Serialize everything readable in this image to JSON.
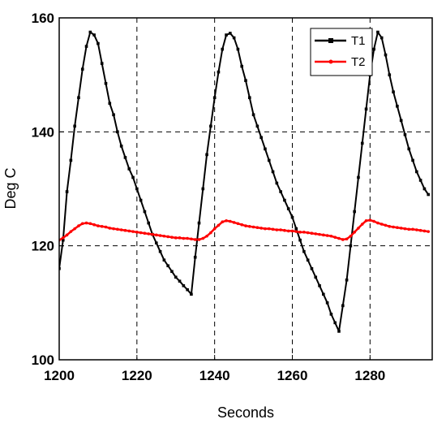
{
  "chart_data": {
    "type": "line",
    "xlabel": "Seconds",
    "ylabel": "Deg C",
    "xlim": [
      1200,
      1296
    ],
    "ylim": [
      100,
      160
    ],
    "xticks": [
      1200,
      1220,
      1240,
      1260,
      1280
    ],
    "yticks": [
      100,
      120,
      140,
      160
    ],
    "grid": true,
    "grid_style": "dashed",
    "legend_position": "top-right",
    "series": [
      {
        "name": "T1",
        "color": "#000000",
        "marker": "square",
        "points": [
          [
            1200,
            116
          ],
          [
            1201,
            121
          ],
          [
            1202,
            129.5
          ],
          [
            1203,
            135
          ],
          [
            1204,
            141
          ],
          [
            1205,
            146
          ],
          [
            1206,
            151
          ],
          [
            1207,
            155
          ],
          [
            1208,
            157.5
          ],
          [
            1209,
            157
          ],
          [
            1210,
            155.5
          ],
          [
            1211,
            152
          ],
          [
            1212,
            148.5
          ],
          [
            1213,
            145
          ],
          [
            1214,
            143
          ],
          [
            1215,
            140
          ],
          [
            1216,
            137.5
          ],
          [
            1217,
            135.5
          ],
          [
            1218,
            133.5
          ],
          [
            1219,
            132
          ],
          [
            1220,
            130
          ],
          [
            1221,
            128
          ],
          [
            1222,
            126
          ],
          [
            1223,
            124
          ],
          [
            1224,
            122
          ],
          [
            1225,
            120.5
          ],
          [
            1226,
            119
          ],
          [
            1227,
            117.5
          ],
          [
            1228,
            116.5
          ],
          [
            1229,
            115.5
          ],
          [
            1230,
            114.5
          ],
          [
            1231,
            113.8
          ],
          [
            1232,
            113
          ],
          [
            1233,
            112.3
          ],
          [
            1234,
            111.5
          ],
          [
            1235,
            118
          ],
          [
            1236,
            124
          ],
          [
            1237,
            130
          ],
          [
            1238,
            136
          ],
          [
            1239,
            141
          ],
          [
            1240,
            146
          ],
          [
            1241,
            150.5
          ],
          [
            1242,
            154.5
          ],
          [
            1243,
            157
          ],
          [
            1244,
            157.3
          ],
          [
            1245,
            156.5
          ],
          [
            1246,
            154.5
          ],
          [
            1247,
            151.5
          ],
          [
            1248,
            149
          ],
          [
            1249,
            146
          ],
          [
            1250,
            143
          ],
          [
            1251,
            141
          ],
          [
            1252,
            139
          ],
          [
            1253,
            137
          ],
          [
            1254,
            135
          ],
          [
            1255,
            133
          ],
          [
            1256,
            131
          ],
          [
            1257,
            129.5
          ],
          [
            1258,
            128
          ],
          [
            1259,
            126.5
          ],
          [
            1260,
            125
          ],
          [
            1261,
            123
          ],
          [
            1262,
            121
          ],
          [
            1263,
            119
          ],
          [
            1264,
            117.5
          ],
          [
            1265,
            116
          ],
          [
            1266,
            114.5
          ],
          [
            1267,
            113
          ],
          [
            1268,
            111.5
          ],
          [
            1269,
            110
          ],
          [
            1270,
            108
          ],
          [
            1271,
            106.5
          ],
          [
            1272,
            105
          ],
          [
            1273,
            109.5
          ],
          [
            1274,
            114
          ],
          [
            1275,
            120
          ],
          [
            1276,
            126
          ],
          [
            1277,
            132
          ],
          [
            1278,
            138
          ],
          [
            1279,
            144
          ],
          [
            1280,
            150
          ],
          [
            1281,
            154.5
          ],
          [
            1282,
            157.5
          ],
          [
            1283,
            156.5
          ],
          [
            1284,
            153.5
          ],
          [
            1285,
            150
          ],
          [
            1286,
            147
          ],
          [
            1287,
            144.5
          ],
          [
            1288,
            142
          ],
          [
            1289,
            139.5
          ],
          [
            1290,
            137
          ],
          [
            1291,
            135
          ],
          [
            1292,
            133
          ],
          [
            1293,
            131.5
          ],
          [
            1294,
            130
          ],
          [
            1295,
            129
          ]
        ]
      },
      {
        "name": "T2",
        "color": "#ff0000",
        "marker": "dot",
        "points": [
          [
            1200,
            121
          ],
          [
            1201,
            121.4
          ],
          [
            1202,
            121.9
          ],
          [
            1203,
            122.5
          ],
          [
            1204,
            123
          ],
          [
            1205,
            123.5
          ],
          [
            1206,
            123.9
          ],
          [
            1207,
            124
          ],
          [
            1208,
            123.9
          ],
          [
            1209,
            123.7
          ],
          [
            1210,
            123.5
          ],
          [
            1211,
            123.4
          ],
          [
            1212,
            123.3
          ],
          [
            1213,
            123.1
          ],
          [
            1214,
            123
          ],
          [
            1215,
            122.9
          ],
          [
            1216,
            122.8
          ],
          [
            1217,
            122.7
          ],
          [
            1218,
            122.6
          ],
          [
            1219,
            122.5
          ],
          [
            1220,
            122.4
          ],
          [
            1221,
            122.3
          ],
          [
            1222,
            122.2
          ],
          [
            1223,
            122.1
          ],
          [
            1224,
            122
          ],
          [
            1225,
            121.9
          ],
          [
            1226,
            121.8
          ],
          [
            1227,
            121.7
          ],
          [
            1228,
            121.6
          ],
          [
            1229,
            121.5
          ],
          [
            1230,
            121.4
          ],
          [
            1231,
            121.4
          ],
          [
            1232,
            121.3
          ],
          [
            1233,
            121.3
          ],
          [
            1234,
            121.2
          ],
          [
            1235,
            121.1
          ],
          [
            1236,
            121.1
          ],
          [
            1237,
            121.3
          ],
          [
            1238,
            121.7
          ],
          [
            1239,
            122.3
          ],
          [
            1240,
            123
          ],
          [
            1241,
            123.6
          ],
          [
            1242,
            124.2
          ],
          [
            1243,
            124.4
          ],
          [
            1244,
            124.3
          ],
          [
            1245,
            124.1
          ],
          [
            1246,
            123.9
          ],
          [
            1247,
            123.7
          ],
          [
            1248,
            123.5
          ],
          [
            1249,
            123.4
          ],
          [
            1250,
            123.3
          ],
          [
            1251,
            123.2
          ],
          [
            1252,
            123.1
          ],
          [
            1253,
            123
          ],
          [
            1254,
            123
          ],
          [
            1255,
            122.9
          ],
          [
            1256,
            122.8
          ],
          [
            1257,
            122.8
          ],
          [
            1258,
            122.7
          ],
          [
            1259,
            122.6
          ],
          [
            1260,
            122.6
          ],
          [
            1261,
            122.5
          ],
          [
            1262,
            122.4
          ],
          [
            1263,
            122.4
          ],
          [
            1264,
            122.3
          ],
          [
            1265,
            122.2
          ],
          [
            1266,
            122.1
          ],
          [
            1267,
            122
          ],
          [
            1268,
            121.9
          ],
          [
            1269,
            121.8
          ],
          [
            1270,
            121.7
          ],
          [
            1271,
            121.5
          ],
          [
            1272,
            121.3
          ],
          [
            1273,
            121.1
          ],
          [
            1274,
            121.2
          ],
          [
            1275,
            121.7
          ],
          [
            1276,
            122.4
          ],
          [
            1277,
            123.1
          ],
          [
            1278,
            123.8
          ],
          [
            1279,
            124.4
          ],
          [
            1280,
            124.5
          ],
          [
            1281,
            124.3
          ],
          [
            1282,
            124
          ],
          [
            1283,
            123.8
          ],
          [
            1284,
            123.6
          ],
          [
            1285,
            123.4
          ],
          [
            1286,
            123.3
          ],
          [
            1287,
            123.2
          ],
          [
            1288,
            123.1
          ],
          [
            1289,
            123
          ],
          [
            1290,
            122.9
          ],
          [
            1291,
            122.9
          ],
          [
            1292,
            122.8
          ],
          [
            1293,
            122.7
          ],
          [
            1294,
            122.6
          ],
          [
            1295,
            122.5
          ]
        ]
      }
    ]
  }
}
